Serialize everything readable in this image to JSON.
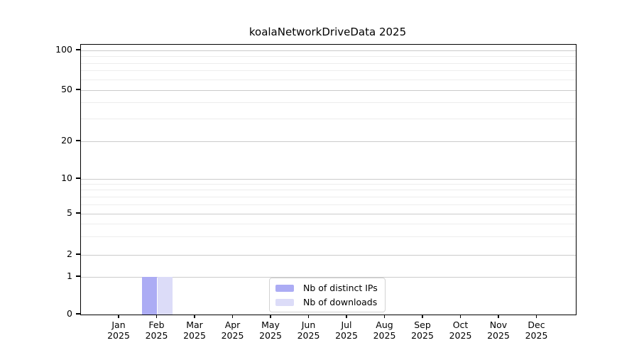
{
  "figure": {
    "background": "#ffffff"
  },
  "chart_data": {
    "type": "bar",
    "title": "koalaNetworkDriveData 2025",
    "categories": [
      "Jan",
      "Feb",
      "Mar",
      "Apr",
      "May",
      "Jun",
      "Jul",
      "Aug",
      "Sep",
      "Oct",
      "Nov",
      "Dec"
    ],
    "x_tick_year": "2025",
    "series": [
      {
        "name": "Nb of distinct IPs",
        "color": "#acacf4",
        "values": [
          0,
          1,
          0,
          0,
          0,
          0,
          0,
          0,
          0,
          0,
          0,
          0
        ]
      },
      {
        "name": "Nb of downloads",
        "color": "#dcdcf8",
        "values": [
          0,
          1,
          0,
          0,
          0,
          0,
          0,
          0,
          0,
          0,
          0,
          0
        ]
      }
    ],
    "xlabel": "",
    "ylabel": "",
    "yscale": "symlog",
    "ylim": [
      0,
      110
    ],
    "yticks_major": [
      0,
      1,
      2,
      5,
      10,
      20,
      50,
      100
    ],
    "yticks_minor": [
      3,
      4,
      6,
      7,
      8,
      9,
      30,
      40,
      60,
      70,
      80,
      90
    ],
    "grid": "horizontal major+minor",
    "legend_position": "lower center inside",
    "colors": {
      "grid_major": "#cbcbcb",
      "grid_minor": "#ededed",
      "spine": "#000000",
      "text": "#000000"
    }
  }
}
